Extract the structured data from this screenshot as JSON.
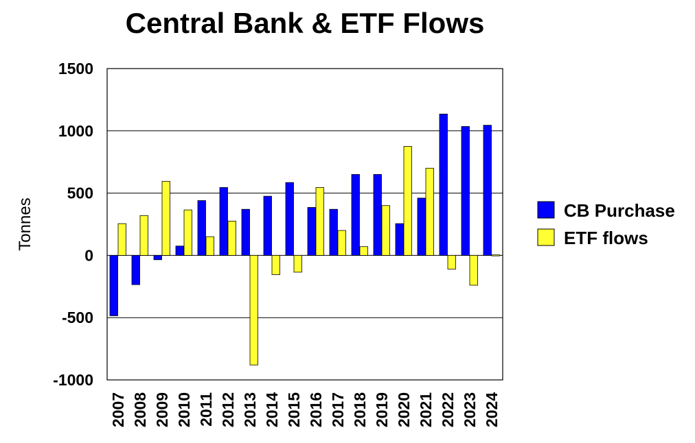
{
  "chart_data": {
    "type": "bar",
    "title": "Central Bank & ETF Flows",
    "xlabel": "",
    "ylabel": "Tonnes",
    "ylim": [
      -1000,
      1500
    ],
    "yticks": [
      "1500",
      "1000",
      "500",
      "0",
      "-500",
      "-1000"
    ],
    "ytick_values": [
      1500,
      1000,
      500,
      0,
      -500,
      -1000
    ],
    "grid": true,
    "legend_position": "right",
    "categories": [
      "2007",
      "2008",
      "2009",
      "2010",
      "2011",
      "2012",
      "2013",
      "2014",
      "2015",
      "2016",
      "2017",
      "2018",
      "2019",
      "2020",
      "2021",
      "2022",
      "2023",
      "2024"
    ],
    "series": [
      {
        "name": "CB Purchase",
        "color": "#0000ff",
        "values": [
          -485,
          -235,
          -35,
          75,
          440,
          545,
          370,
          475,
          585,
          385,
          370,
          650,
          650,
          255,
          460,
          1135,
          1035,
          1045
        ]
      },
      {
        "name": "ETF flows",
        "color": "#ffff33",
        "values": [
          255,
          320,
          595,
          365,
          150,
          275,
          -880,
          -155,
          -135,
          545,
          200,
          70,
          400,
          875,
          700,
          -110,
          -240,
          -5
        ]
      }
    ]
  }
}
